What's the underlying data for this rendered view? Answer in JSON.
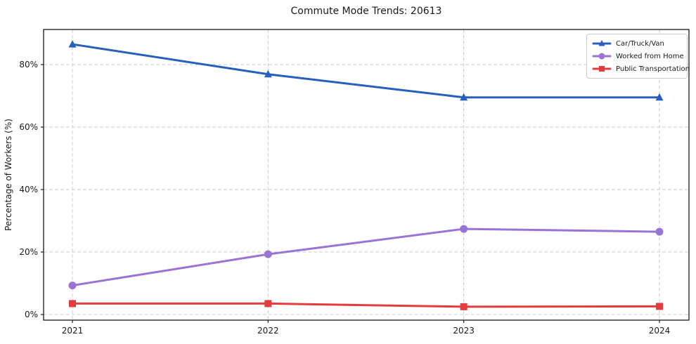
{
  "title": "Commute Mode Trends: 20613",
  "chart_data": {
    "type": "line",
    "title": "Commute Mode Trends: 20613",
    "xlabel": "",
    "ylabel": "Percentage of Workers (%)",
    "categories": [
      "2021",
      "2022",
      "2023",
      "2024"
    ],
    "series": [
      {
        "name": "Car/Truck/Van",
        "color": "#285fbe",
        "marker": "triangle",
        "values": [
          86.5,
          76.9,
          69.5,
          69.5
        ]
      },
      {
        "name": "Worked from Home",
        "color": "#9b72d6",
        "marker": "circle",
        "values": [
          9.3,
          19.3,
          27.4,
          26.5
        ]
      },
      {
        "name": "Public Transportation",
        "color": "#e23c3c",
        "marker": "square",
        "values": [
          3.5,
          3.5,
          2.5,
          2.6
        ]
      }
    ],
    "y_ticks": [
      "0%",
      "20%",
      "40%",
      "60%",
      "80%"
    ],
    "y_tick_values": [
      0,
      20,
      40,
      60,
      80
    ],
    "ylim": [
      -1.8,
      91.2
    ],
    "grid": true,
    "grid_style": "dashed",
    "legend_position": "upper right",
    "frame_color": "#1a1a1a",
    "grid_color": "#cccccc"
  }
}
